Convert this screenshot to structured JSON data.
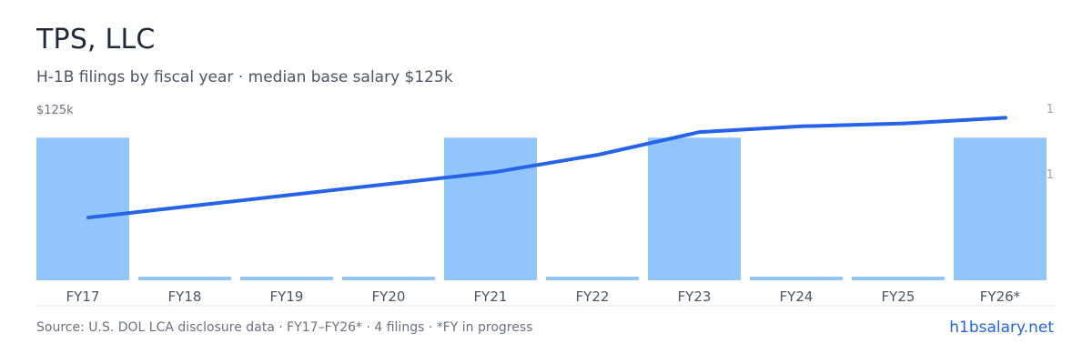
{
  "header": {
    "title": "TPS, LLC",
    "subtitle": "H-1B filings by fiscal year · median base salary $125k"
  },
  "footer": {
    "source": "Source: U.S. DOL LCA disclosure data · FY17–FY26* · 4 filings · *FY in progress",
    "brand": "h1bsalary.net"
  },
  "colors": {
    "bar": "#93c5fd",
    "line": "#2563eb",
    "brand": "#2563eb"
  },
  "chart_data": {
    "type": "bar",
    "categories": [
      "FY17",
      "FY18",
      "FY19",
      "FY20",
      "FY21",
      "FY22",
      "FY23",
      "FY24",
      "FY25",
      "FY26*"
    ],
    "series": [
      {
        "type": "bar",
        "axis": "right",
        "values": [
          1,
          0,
          0,
          0,
          1,
          0,
          1,
          0,
          0,
          1
        ]
      },
      {
        "type": "line",
        "axis": "left",
        "values": [
          102,
          106,
          110,
          114,
          118,
          124,
          132,
          134,
          135,
          137
        ]
      }
    ],
    "left_axis": {
      "top_label": "$125k"
    },
    "right_axis": {
      "tick_labels": [
        "1",
        "1"
      ]
    },
    "grid": false,
    "legend": "none"
  }
}
